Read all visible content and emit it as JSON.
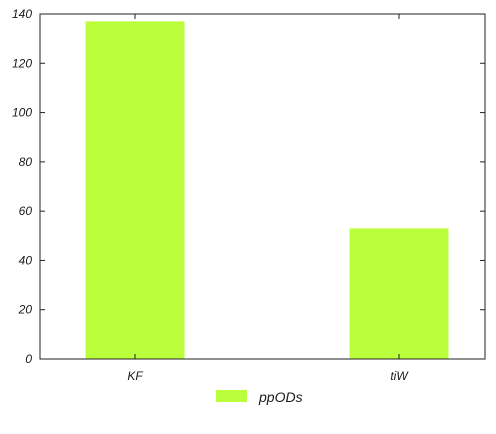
{
  "chart_data": {
    "type": "bar",
    "categories": [
      "KF",
      "tiW"
    ],
    "series": [
      {
        "name": "ppODs",
        "values": [
          137,
          53
        ],
        "color": "#bbff3c"
      }
    ],
    "ylim": [
      0,
      140
    ],
    "yticks": [
      0,
      20,
      40,
      60,
      80,
      100,
      120,
      140
    ],
    "grid": false,
    "legend_position": "bottom-center",
    "title": "",
    "xlabel": "",
    "ylabel": ""
  }
}
